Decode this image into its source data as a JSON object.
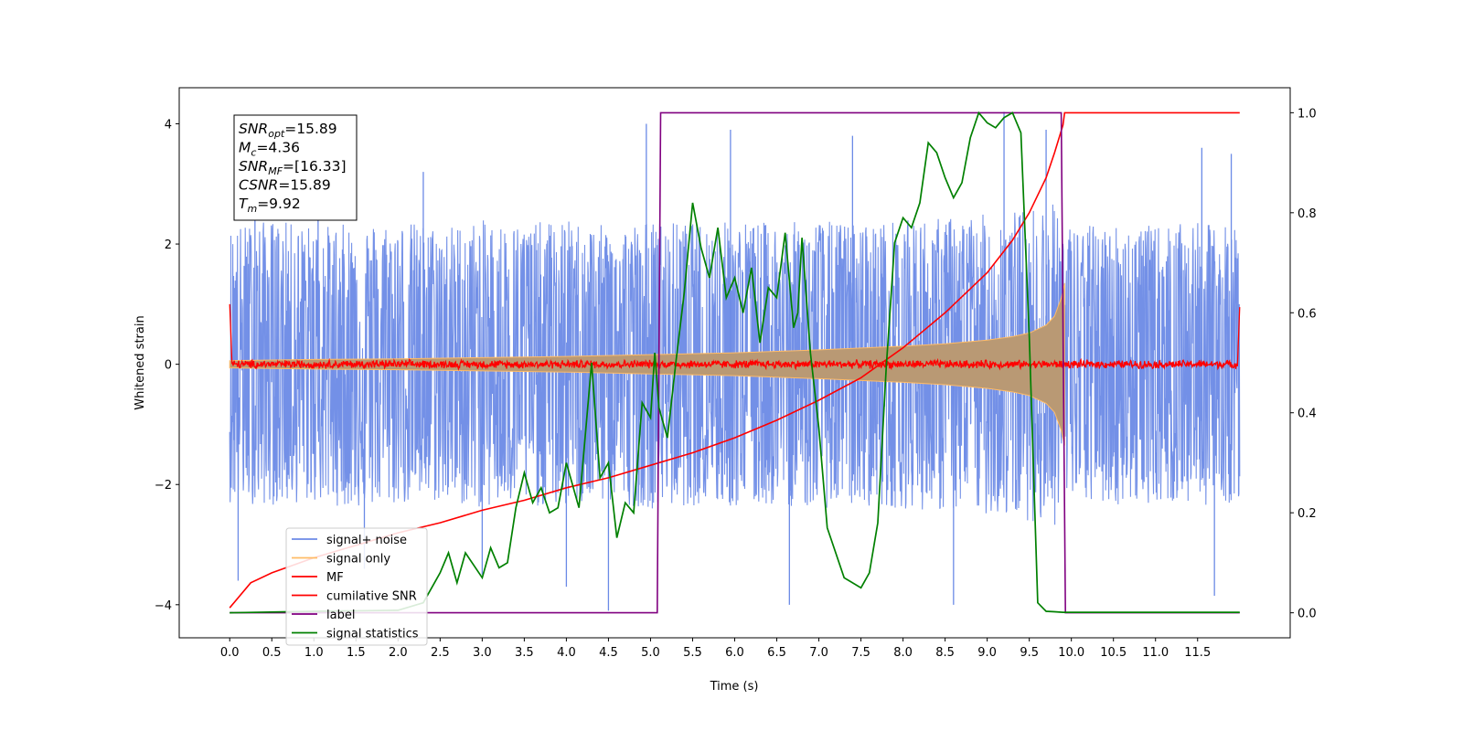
{
  "chart_data": {
    "type": "line",
    "title": "",
    "xlabel": "Time (s)",
    "ylabel": "Whitened strain",
    "xlim": [
      -0.6,
      12.6
    ],
    "ylim": [
      -4.55,
      4.6
    ],
    "y2lim": [
      -0.05,
      1.05
    ],
    "x_ticks": [
      0.0,
      0.5,
      1.0,
      1.5,
      2.0,
      2.5,
      3.0,
      3.5,
      4.0,
      4.5,
      5.0,
      5.5,
      6.0,
      6.5,
      7.0,
      7.5,
      8.0,
      8.5,
      9.0,
      9.5,
      10.0,
      10.5,
      11.0,
      11.5
    ],
    "x_tick_labels": [
      "0.0",
      "0.5",
      "1.0",
      "1.5",
      "2.0",
      "2.5",
      "3.0",
      "3.5",
      "4.0",
      "4.5",
      "5.0",
      "5.5",
      "6.0",
      "6.5",
      "7.0",
      "7.5",
      "8.0",
      "8.5",
      "9.0",
      "9.5",
      "10.0",
      "10.5",
      "11.0",
      "11.5"
    ],
    "y_ticks": [
      -4,
      -2,
      0,
      2,
      4
    ],
    "y_tick_labels": [
      "−4",
      "−2",
      "0",
      "2",
      "4"
    ],
    "y2_ticks": [
      0.0,
      0.2,
      0.4,
      0.6,
      0.8,
      1.0
    ],
    "y2_tick_labels": [
      "0.0",
      "0.2",
      "0.4",
      "0.6",
      "0.8",
      "1.0"
    ],
    "grid": false,
    "legend_position": "lower-left",
    "series": [
      {
        "name": "signal+ noise",
        "axis": "left",
        "color": "#6b8ae6",
        "envelope": {
          "x": [
            0.0,
            0.5,
            1.0,
            1.5,
            2.0,
            2.5,
            3.0,
            3.5,
            4.0,
            4.5,
            5.0,
            5.5,
            6.0,
            6.5,
            7.0,
            7.5,
            8.0,
            8.5,
            9.0,
            9.5,
            9.8,
            9.92,
            10.0,
            10.5,
            11.0,
            11.5,
            12.0
          ],
          "upper": [
            2.3,
            2.4,
            2.3,
            2.35,
            2.4,
            2.3,
            2.4,
            2.35,
            2.4,
            2.3,
            2.4,
            2.35,
            2.4,
            2.35,
            2.4,
            2.35,
            2.4,
            2.45,
            2.5,
            2.6,
            2.7,
            2.4,
            2.3,
            2.35,
            2.3,
            2.35,
            2.3
          ],
          "lower": [
            -2.3,
            -2.35,
            -2.3,
            -2.4,
            -2.35,
            -2.3,
            -2.4,
            -2.35,
            -2.4,
            -2.3,
            -2.4,
            -2.35,
            -2.4,
            -2.35,
            -2.4,
            -2.35,
            -2.4,
            -2.45,
            -2.5,
            -2.6,
            -2.7,
            -2.4,
            -2.3,
            -2.35,
            -2.3,
            -2.35,
            -2.3
          ]
        },
        "peaks": [
          {
            "x": 0.1,
            "y": -3.6
          },
          {
            "x": 0.3,
            "y": 3.55
          },
          {
            "x": 1.05,
            "y": 3.6
          },
          {
            "x": 1.6,
            "y": -3.4
          },
          {
            "x": 2.3,
            "y": 3.2
          },
          {
            "x": 3.0,
            "y": -3.5
          },
          {
            "x": 4.0,
            "y": -3.7
          },
          {
            "x": 4.5,
            "y": -4.1
          },
          {
            "x": 4.95,
            "y": 4.0
          },
          {
            "x": 5.95,
            "y": 3.9
          },
          {
            "x": 6.65,
            "y": -4.0
          },
          {
            "x": 7.4,
            "y": 3.8
          },
          {
            "x": 8.6,
            "y": -4.0
          },
          {
            "x": 9.2,
            "y": 4.2
          },
          {
            "x": 9.7,
            "y": 3.9
          },
          {
            "x": 11.55,
            "y": 3.6
          },
          {
            "x": 11.7,
            "y": -3.85
          },
          {
            "x": 11.9,
            "y": 3.5
          }
        ]
      },
      {
        "name": "signal only",
        "axis": "left",
        "color": "#ffbb66",
        "fill": "#b99974",
        "envelope": {
          "x": [
            0.0,
            1.0,
            2.0,
            3.0,
            4.0,
            5.0,
            6.0,
            7.0,
            8.0,
            8.5,
            9.0,
            9.3,
            9.5,
            9.7,
            9.8,
            9.88,
            9.92
          ],
          "upper": [
            0.06,
            0.08,
            0.09,
            0.11,
            0.13,
            0.16,
            0.19,
            0.24,
            0.3,
            0.34,
            0.4,
            0.46,
            0.52,
            0.65,
            0.8,
            1.1,
            1.35
          ],
          "lower": [
            -0.06,
            -0.08,
            -0.09,
            -0.11,
            -0.13,
            -0.16,
            -0.19,
            -0.24,
            -0.3,
            -0.34,
            -0.4,
            -0.46,
            -0.52,
            -0.65,
            -0.8,
            -1.1,
            -1.35
          ]
        }
      },
      {
        "name": "MF",
        "axis": "left",
        "color": "#ff0000",
        "base": 0.0,
        "noise_amplitude": 0.08,
        "edge_points": [
          {
            "x": 0.0,
            "y": 1.0
          },
          {
            "x": 12.0,
            "y": 0.95
          }
        ]
      },
      {
        "name": "cumilative SNR",
        "axis": "right",
        "color": "#ff0000",
        "x": [
          0.0,
          0.25,
          0.5,
          1.0,
          1.5,
          2.0,
          2.5,
          3.0,
          3.5,
          4.0,
          4.5,
          5.0,
          5.5,
          6.0,
          6.5,
          7.0,
          7.5,
          8.0,
          8.5,
          9.0,
          9.3,
          9.5,
          9.7,
          9.8,
          9.9,
          9.92,
          12.0
        ],
        "y": [
          0.01,
          0.06,
          0.08,
          0.11,
          0.135,
          0.16,
          0.18,
          0.205,
          0.225,
          0.25,
          0.27,
          0.295,
          0.32,
          0.35,
          0.385,
          0.425,
          0.47,
          0.53,
          0.6,
          0.68,
          0.745,
          0.8,
          0.87,
          0.92,
          0.975,
          1.0,
          1.0
        ]
      },
      {
        "name": "label",
        "axis": "right",
        "color": "#800080",
        "x": [
          0.0,
          5.08,
          5.12,
          9.88,
          9.93,
          12.0
        ],
        "y": [
          0.0,
          0.0,
          1.0,
          1.0,
          0.0,
          0.0
        ]
      },
      {
        "name": "signal statistics",
        "axis": "right",
        "color": "#008000",
        "x": [
          0.0,
          1.0,
          2.0,
          2.3,
          2.5,
          2.6,
          2.7,
          2.8,
          3.0,
          3.1,
          3.2,
          3.3,
          3.4,
          3.5,
          3.6,
          3.7,
          3.8,
          3.9,
          4.0,
          4.15,
          4.3,
          4.4,
          4.5,
          4.6,
          4.7,
          4.8,
          4.9,
          5.0,
          5.05,
          5.1,
          5.2,
          5.3,
          5.4,
          5.5,
          5.6,
          5.7,
          5.8,
          5.9,
          6.0,
          6.1,
          6.2,
          6.3,
          6.4,
          6.5,
          6.6,
          6.7,
          6.75,
          6.8,
          6.9,
          7.0,
          7.1,
          7.3,
          7.5,
          7.6,
          7.7,
          7.8,
          7.9,
          8.0,
          8.1,
          8.2,
          8.3,
          8.4,
          8.5,
          8.6,
          8.7,
          8.8,
          8.9,
          9.0,
          9.1,
          9.2,
          9.3,
          9.4,
          9.5,
          9.6,
          9.7,
          9.8,
          9.9,
          10.0,
          11.0,
          12.0
        ],
        "y": [
          0.0,
          0.003,
          0.005,
          0.02,
          0.08,
          0.12,
          0.06,
          0.12,
          0.07,
          0.13,
          0.09,
          0.1,
          0.21,
          0.28,
          0.22,
          0.25,
          0.2,
          0.21,
          0.3,
          0.21,
          0.5,
          0.27,
          0.3,
          0.15,
          0.22,
          0.2,
          0.42,
          0.39,
          0.52,
          0.41,
          0.35,
          0.5,
          0.64,
          0.82,
          0.73,
          0.67,
          0.77,
          0.63,
          0.67,
          0.6,
          0.69,
          0.54,
          0.65,
          0.63,
          0.76,
          0.57,
          0.6,
          0.75,
          0.52,
          0.37,
          0.17,
          0.07,
          0.05,
          0.08,
          0.18,
          0.49,
          0.74,
          0.79,
          0.77,
          0.82,
          0.94,
          0.92,
          0.87,
          0.83,
          0.86,
          0.95,
          1.0,
          0.98,
          0.97,
          0.99,
          1.0,
          0.96,
          0.55,
          0.02,
          0.003,
          0.002,
          0.001,
          0.001,
          0.001,
          0.001
        ]
      }
    ],
    "annotation_box": {
      "lines": [
        {
          "main": "SNR",
          "sub": "opt",
          "value": "=15.89"
        },
        {
          "main": "M",
          "sub": "c",
          "value": "=4.36"
        },
        {
          "main": "SNR",
          "sub": "MF",
          "value": "=[16.33]"
        },
        {
          "main": "CSNR",
          "sub": "",
          "value": "=15.89"
        },
        {
          "main": "T",
          "sub": "m",
          "value": "=9.92"
        }
      ]
    }
  }
}
